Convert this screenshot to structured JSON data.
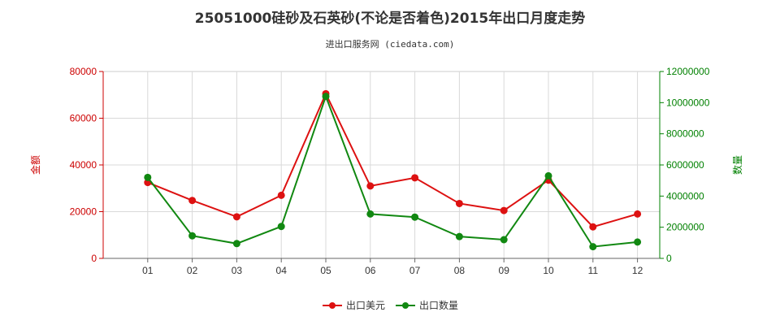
{
  "chart_data": {
    "type": "line",
    "title": "25051000硅砂及石英砂(不论是否着色)2015年出口月度走势",
    "subtitle": "进出口服务网 (ciedata.com)",
    "categories": [
      "01",
      "02",
      "03",
      "04",
      "05",
      "06",
      "07",
      "08",
      "09",
      "10",
      "11",
      "12"
    ],
    "y_left": {
      "label": "金额",
      "ticks": [
        "0",
        "20000",
        "40000",
        "60000",
        "80000"
      ],
      "ylim": [
        0,
        80000
      ],
      "color": "#cc0000"
    },
    "y_right": {
      "label": "数量",
      "ticks": [
        "0",
        "2000000",
        "4000000",
        "6000000",
        "8000000",
        "10000000",
        "12000000"
      ],
      "ylim": [
        0,
        12000000
      ],
      "color": "#008000"
    },
    "series": [
      {
        "name": "出口美元",
        "axis": "left",
        "color": "#dd1111",
        "values": [
          32500,
          24800,
          17800,
          27000,
          70500,
          31000,
          34500,
          23500,
          20500,
          33500,
          13500,
          19000
        ]
      },
      {
        "name": "出口数量",
        "axis": "right",
        "color": "#118811",
        "values": [
          5200000,
          1450000,
          950000,
          2050000,
          10400000,
          2850000,
          2650000,
          1400000,
          1200000,
          5300000,
          750000,
          1050000
        ]
      }
    ],
    "grid": true,
    "legend_position": "bottom"
  }
}
